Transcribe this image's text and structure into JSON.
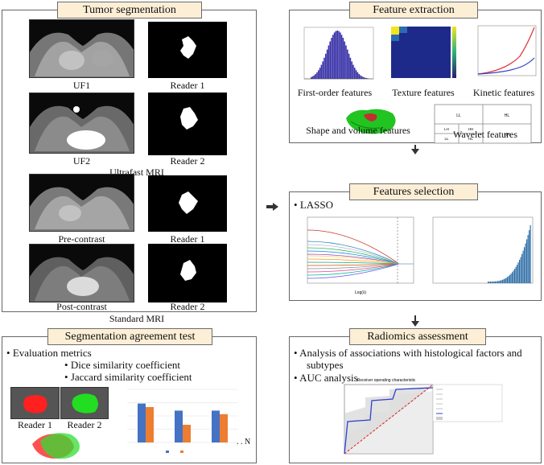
{
  "tumor_segmentation": {
    "title": "Tumor segmentation",
    "labels": {
      "uf1": "UF1",
      "uf2": "UF2",
      "reader1_a": "Reader 1",
      "reader2_a": "Reader 2",
      "ultrafast": "Ultrafast MRI",
      "pre": "Pre-contrast",
      "post": "Post-contrast",
      "reader1_b": "Reader 1",
      "reader2_b": "Reader 2",
      "standard": "Standard MRI"
    }
  },
  "segmentation_agreement": {
    "title": "Segmentation agreement test",
    "bullet": "Evaluation metrics",
    "sub1": "Dice similarity coefficient",
    "sub2": "Jaccard similarity coefficient",
    "reader1": "Reader 1",
    "reader2": "Reader 2",
    "bar_chart": {
      "categories": [
        "",
        "",
        ""
      ],
      "series": [
        {
          "color": "#4472c4",
          "values": [
            0.92,
            0.88,
            0.88
          ]
        },
        {
          "color": "#ed7d31",
          "values": [
            0.9,
            0.8,
            0.86
          ]
        }
      ],
      "ylim": [
        0.7,
        1.0
      ]
    },
    "trailing": ". . N"
  },
  "feature_extraction": {
    "title": "Feature extraction",
    "first_order": "First-order features",
    "texture": "Texture features",
    "kinetic": "Kinetic features",
    "shape": "Shape and volume features",
    "wavelet": "Wavelet features",
    "wavelet_cells": {
      "ll_top": "LL",
      "hl": "HL",
      "lh": "LH",
      "hh_small": "HH",
      "ll_small": "LL",
      "hl_small": "HL",
      "hh": "HH"
    }
  },
  "features_selection": {
    "title": "Features selection",
    "bullet": "LASSO",
    "xlabel": "Log(λ)"
  },
  "radiomics_assessment": {
    "title": "Radiomics assessment",
    "bullet1_line1": "Analysis of associations with histological factors and",
    "bullet1_line2": "subtypes",
    "bullet2": "AUC analysis",
    "roc_title": "Receiver operating characteristic"
  },
  "colors": {
    "title_bg": "#fcefd6",
    "dsc": "#4472c4",
    "jsc": "#ed7d31",
    "reader1_mask": "#ff2020",
    "reader2_mask": "#22dd22",
    "histogram": "#3a33a8"
  }
}
